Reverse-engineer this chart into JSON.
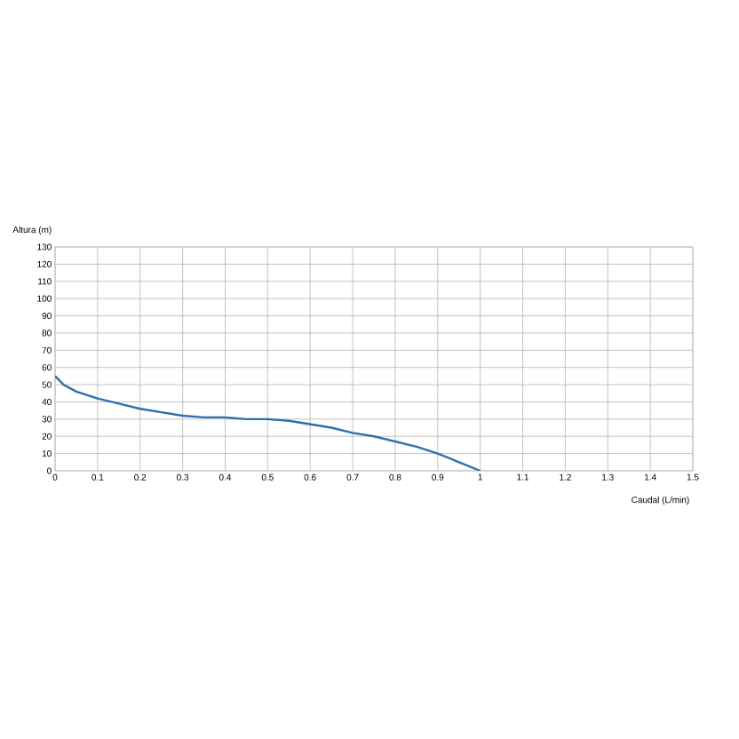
{
  "chart_data": {
    "type": "line",
    "xlabel": "Caudal (L/min)",
    "ylabel": "Altura (m)",
    "xlim": [
      0,
      1.5
    ],
    "xticks": [
      0,
      0.1,
      0.2,
      0.3,
      0.4,
      0.5,
      0.6,
      0.7,
      0.8,
      0.9,
      1,
      1.1,
      1.2,
      1.3,
      1.4,
      1.5
    ],
    "ylim": [
      0,
      130
    ],
    "yticks": [
      0,
      10,
      20,
      30,
      40,
      50,
      60,
      70,
      80,
      90,
      100,
      110,
      120,
      130
    ],
    "grid": true,
    "marker": "none",
    "line_style": "solid",
    "x": [
      0,
      0.02,
      0.05,
      0.1,
      0.15,
      0.2,
      0.25,
      0.3,
      0.35,
      0.4,
      0.45,
      0.5,
      0.55,
      0.6,
      0.65,
      0.7,
      0.75,
      0.8,
      0.85,
      0.9,
      0.95,
      1.0
    ],
    "series": [
      {
        "color": "#2e6fad",
        "values": [
          55,
          50,
          46,
          42,
          39,
          36,
          34,
          32,
          31,
          31,
          30,
          30,
          29,
          27,
          25,
          22,
          20,
          17,
          14,
          10,
          5,
          0
        ]
      }
    ]
  }
}
